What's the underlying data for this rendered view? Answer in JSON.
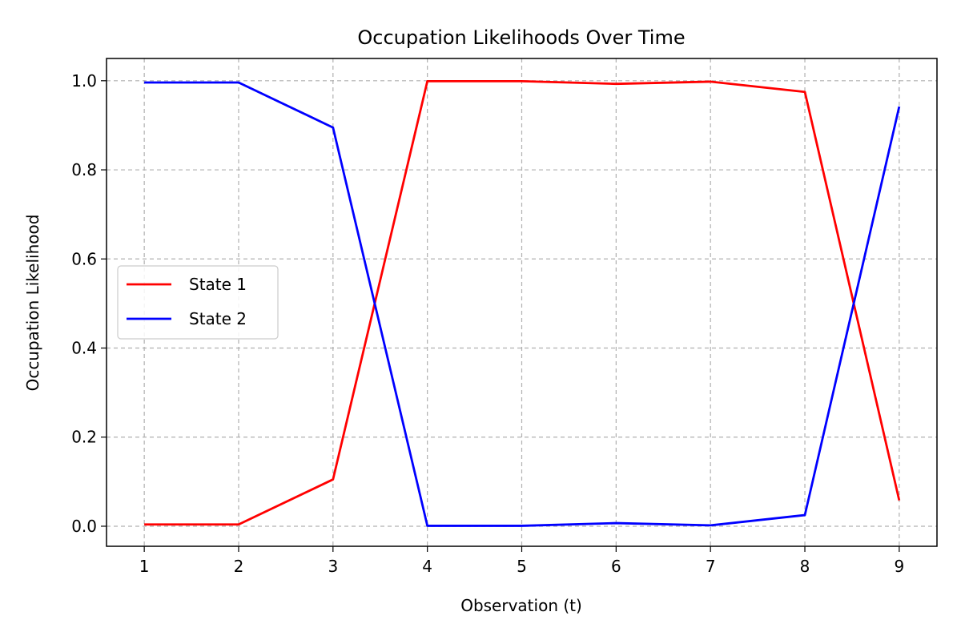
{
  "chart_data": {
    "type": "line",
    "title": "Occupation Likelihoods Over Time",
    "xlabel": "Observation (t)",
    "ylabel": "Occupation Likelihood",
    "x": [
      1,
      2,
      3,
      4,
      5,
      6,
      7,
      8,
      9
    ],
    "xticks": [
      "1",
      "2",
      "3",
      "4",
      "5",
      "6",
      "7",
      "8",
      "9"
    ],
    "yticks": [
      "0.0",
      "0.2",
      "0.4",
      "0.6",
      "0.8",
      "1.0"
    ],
    "xlim": [
      0.6,
      9.4
    ],
    "ylim": [
      -0.045,
      1.05
    ],
    "grid": true,
    "legend_position": "center-left",
    "series": [
      {
        "name": "State 1",
        "color": "#ff0000",
        "values": [
          0.004,
          0.004,
          0.105,
          0.999,
          0.999,
          0.993,
          0.998,
          0.975,
          0.058
        ]
      },
      {
        "name": "State 2",
        "color": "#0000ff",
        "values": [
          0.996,
          0.996,
          0.895,
          0.001,
          0.001,
          0.007,
          0.002,
          0.025,
          0.942
        ]
      }
    ]
  }
}
